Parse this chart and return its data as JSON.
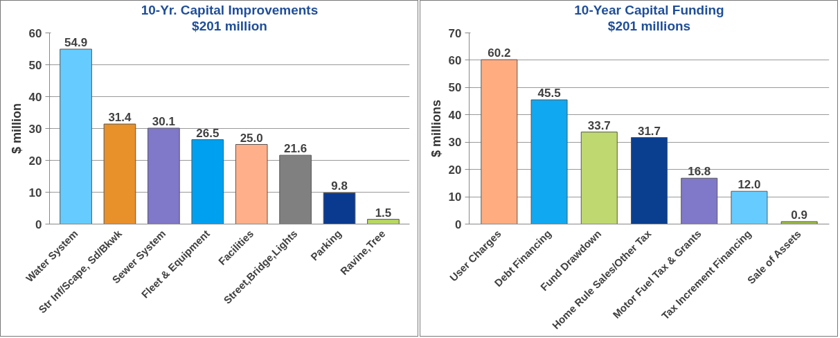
{
  "chart_data": [
    {
      "type": "bar",
      "title": "10-Yr. Capital Improvements",
      "subtitle": "$201 million",
      "ylabel": "$ million",
      "categories": [
        "Water System",
        "Str Inf/Scape, Sd/Bkwk",
        "Sewer System",
        "Fleet & Equipment",
        "Facilities",
        "Street,Bridge,Lights",
        "Parking",
        "Ravine,Tree"
      ],
      "values": [
        54.9,
        31.4,
        30.1,
        26.5,
        25.0,
        21.6,
        9.8,
        1.5
      ],
      "value_labels": [
        "54.9",
        "31.4",
        "30.1",
        "26.5",
        "25.0",
        "21.6",
        "9.8",
        "1.5"
      ],
      "colors": [
        "#66ccff",
        "#e8902a",
        "#8078c8",
        "#00a0f0",
        "#ffb08a",
        "#808080",
        "#0a3a90",
        "#b8d860"
      ],
      "ylim": [
        0,
        60
      ],
      "yticks": [
        0,
        10,
        20,
        30,
        40,
        50,
        60
      ],
      "grid": "y"
    },
    {
      "type": "bar",
      "title": "10-Year Capital Funding",
      "subtitle": "$201 millions",
      "ylabel": "$ millions",
      "categories": [
        "User Charges",
        "Debt Financing",
        "Fund Drawdown",
        "Home Rule Sales/Other Tax",
        "Motor Fuel Tax & Grants",
        "Tax Increment Financing",
        "Sale of Assets"
      ],
      "values": [
        60.2,
        45.5,
        33.7,
        31.7,
        16.8,
        12.0,
        0.9
      ],
      "value_labels": [
        "60.2",
        "45.5",
        "33.7",
        "31.7",
        "16.8",
        "12.0",
        "0.9"
      ],
      "colors": [
        "#ffad80",
        "#10a8f0",
        "#c0d870",
        "#0a3f90",
        "#8078c8",
        "#66ccff",
        "#a0c040"
      ],
      "ylim": [
        0,
        70
      ],
      "yticks": [
        0,
        10,
        20,
        30,
        40,
        50,
        60,
        70
      ],
      "grid": "y"
    }
  ]
}
